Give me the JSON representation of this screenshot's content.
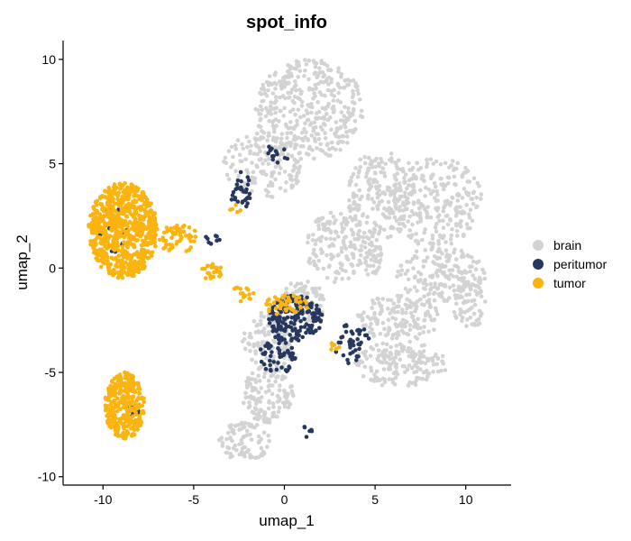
{
  "chart_data": {
    "type": "scatter",
    "title": "spot_info",
    "xlabel": "umap_1",
    "ylabel": "umap_2",
    "xlim": [
      -12.2,
      12.5
    ],
    "ylim": [
      -10.4,
      10.9
    ],
    "xticks": [
      -10,
      -5,
      0,
      5,
      10
    ],
    "yticks": [
      -10,
      -5,
      0,
      5,
      10
    ],
    "xtick_labels": [
      "-10",
      "-5",
      "0",
      "5",
      "10"
    ],
    "ytick_labels": [
      "-10",
      "-5",
      "0",
      "5",
      "10"
    ],
    "grid": false,
    "legend_position": "right",
    "series": [
      {
        "name": "brain",
        "color": "#d3d3d3",
        "clusters": [
          {
            "cx": 1.4,
            "cy": 7.6,
            "rx": 3.0,
            "ry": 2.4,
            "n": 380
          },
          {
            "cx": -1.2,
            "cy": 4.9,
            "rx": 2.2,
            "ry": 1.6,
            "n": 160
          },
          {
            "cx": 5.2,
            "cy": 3.5,
            "rx": 1.7,
            "ry": 2.2,
            "n": 190
          },
          {
            "cx": 8.3,
            "cy": 3.2,
            "rx": 2.6,
            "ry": 2.2,
            "n": 250
          },
          {
            "cx": 2.8,
            "cy": 1.0,
            "rx": 1.6,
            "ry": 1.7,
            "n": 140
          },
          {
            "cx": 8.6,
            "cy": -0.3,
            "rx": 2.5,
            "ry": 1.3,
            "n": 170
          },
          {
            "cx": 10.2,
            "cy": -1.8,
            "rx": 0.9,
            "ry": 1.1,
            "n": 60
          },
          {
            "cx": 6.3,
            "cy": -2.4,
            "rx": 2.3,
            "ry": 1.1,
            "n": 150
          },
          {
            "cx": 6.4,
            "cy": -4.6,
            "rx": 2.6,
            "ry": 1.1,
            "n": 170
          },
          {
            "cx": 1.0,
            "cy": -1.6,
            "rx": 1.3,
            "ry": 1.0,
            "n": 100
          },
          {
            "cx": -0.8,
            "cy": -3.5,
            "rx": 1.6,
            "ry": 1.4,
            "n": 120
          },
          {
            "cx": -0.9,
            "cy": -6.1,
            "rx": 1.4,
            "ry": 1.4,
            "n": 130
          },
          {
            "cx": -2.2,
            "cy": -8.3,
            "rx": 1.5,
            "ry": 0.9,
            "n": 80
          },
          {
            "cx": 4.8,
            "cy": 0.7,
            "rx": 0.6,
            "ry": 1.1,
            "n": 50
          }
        ]
      },
      {
        "name": "peritumor",
        "color": "#26385f",
        "clusters": [
          {
            "cx": 0.6,
            "cy": -2.4,
            "rx": 1.5,
            "ry": 1.1,
            "n": 170
          },
          {
            "cx": -0.4,
            "cy": -4.2,
            "rx": 1.0,
            "ry": 0.9,
            "n": 55
          },
          {
            "cx": 3.7,
            "cy": -3.6,
            "rx": 1.0,
            "ry": 1.0,
            "n": 40
          },
          {
            "cx": -2.4,
            "cy": 3.7,
            "rx": 0.6,
            "ry": 0.9,
            "n": 30
          },
          {
            "cx": -0.5,
            "cy": 5.4,
            "rx": 0.8,
            "ry": 0.5,
            "n": 14
          },
          {
            "cx": -9.5,
            "cy": 1.8,
            "rx": 0.8,
            "ry": 1.2,
            "n": 32
          },
          {
            "cx": -8.4,
            "cy": -7.0,
            "rx": 0.4,
            "ry": 0.6,
            "n": 10
          },
          {
            "cx": 1.3,
            "cy": -7.8,
            "rx": 0.25,
            "ry": 0.35,
            "n": 6
          },
          {
            "cx": -4.0,
            "cy": 1.3,
            "rx": 0.5,
            "ry": 0.4,
            "n": 8
          }
        ]
      },
      {
        "name": "tumor",
        "color": "#fbb30f",
        "clusters": [
          {
            "cx": -8.9,
            "cy": 1.8,
            "rx": 1.9,
            "ry": 2.3,
            "n": 700
          },
          {
            "cx": -8.8,
            "cy": -6.6,
            "rx": 1.1,
            "ry": 1.6,
            "n": 330
          },
          {
            "cx": -5.8,
            "cy": 1.4,
            "rx": 1.2,
            "ry": 0.7,
            "n": 55
          },
          {
            "cx": -4.0,
            "cy": -0.2,
            "rx": 0.6,
            "ry": 0.4,
            "n": 22
          },
          {
            "cx": -2.3,
            "cy": -1.2,
            "rx": 0.6,
            "ry": 0.4,
            "n": 15
          },
          {
            "cx": 0.1,
            "cy": -1.8,
            "rx": 1.2,
            "ry": 0.5,
            "n": 45
          },
          {
            "cx": -2.7,
            "cy": 2.8,
            "rx": 0.3,
            "ry": 0.3,
            "n": 5
          },
          {
            "cx": 2.8,
            "cy": -3.6,
            "rx": 0.5,
            "ry": 0.4,
            "n": 6
          }
        ]
      }
    ]
  }
}
